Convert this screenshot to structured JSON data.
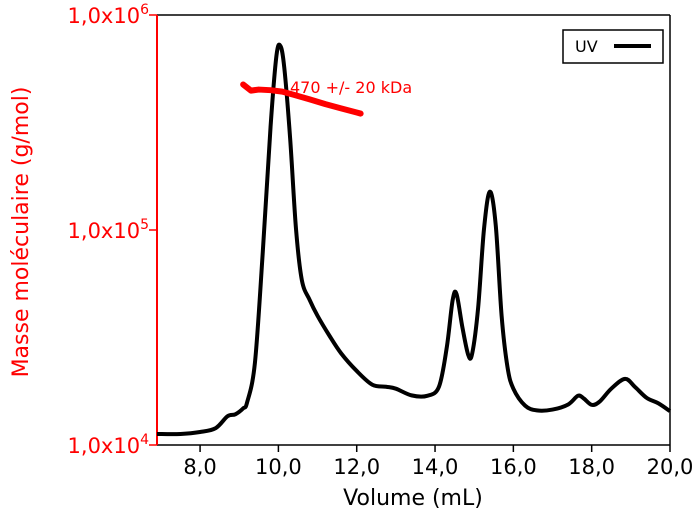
{
  "chart_data": {
    "type": "line",
    "xlabel": "Volume (mL)",
    "ylabel": "Masse moléculaire (g/mol)",
    "xlim": [
      6.9,
      20.0
    ],
    "x_ticks": [
      8,
      10,
      12,
      14,
      16,
      18,
      20
    ],
    "x_tick_labels": [
      "8,0",
      "10,0",
      "12,0",
      "14,0",
      "16,0",
      "18,0",
      "20,0"
    ],
    "y_scale": "log",
    "ylim": [
      10000,
      1000000
    ],
    "y_ticks": [
      {
        "value": 10000,
        "mantissa": "1,0x10",
        "exp": "4"
      },
      {
        "value": 100000,
        "mantissa": "1,0x10",
        "exp": "5"
      },
      {
        "value": 1000000,
        "mantissa": "1,0x10",
        "exp": "6"
      }
    ],
    "annotation": "470 +/- 20 kDa",
    "legend": {
      "position": "top-right",
      "entries": [
        {
          "label": "UV",
          "color": "#000000"
        }
      ]
    },
    "series": [
      {
        "name": "UV",
        "axis": "UV absorbance (unlabeled, arbitrary)",
        "color": "#000000",
        "points": [
          [
            6.9,
            0.0
          ],
          [
            7.5,
            0.0
          ],
          [
            8.0,
            0.005
          ],
          [
            8.4,
            0.015
          ],
          [
            8.7,
            0.045
          ],
          [
            8.9,
            0.05
          ],
          [
            9.1,
            0.065
          ],
          [
            9.2,
            0.08
          ],
          [
            9.4,
            0.18
          ],
          [
            9.6,
            0.46
          ],
          [
            9.8,
            0.78
          ],
          [
            9.95,
            0.96
          ],
          [
            10.05,
            0.985
          ],
          [
            10.15,
            0.93
          ],
          [
            10.3,
            0.75
          ],
          [
            10.45,
            0.52
          ],
          [
            10.6,
            0.39
          ],
          [
            10.8,
            0.34
          ],
          [
            11.0,
            0.3
          ],
          [
            11.3,
            0.25
          ],
          [
            11.6,
            0.205
          ],
          [
            12.0,
            0.16
          ],
          [
            12.4,
            0.125
          ],
          [
            12.75,
            0.12
          ],
          [
            13.0,
            0.115
          ],
          [
            13.4,
            0.098
          ],
          [
            13.8,
            0.097
          ],
          [
            14.1,
            0.12
          ],
          [
            14.3,
            0.22
          ],
          [
            14.45,
            0.34
          ],
          [
            14.55,
            0.355
          ],
          [
            14.7,
            0.27
          ],
          [
            14.85,
            0.2
          ],
          [
            14.95,
            0.205
          ],
          [
            15.1,
            0.32
          ],
          [
            15.25,
            0.52
          ],
          [
            15.4,
            0.615
          ],
          [
            15.55,
            0.53
          ],
          [
            15.7,
            0.3
          ],
          [
            15.85,
            0.17
          ],
          [
            16.0,
            0.115
          ],
          [
            16.3,
            0.072
          ],
          [
            16.6,
            0.06
          ],
          [
            17.0,
            0.062
          ],
          [
            17.4,
            0.075
          ],
          [
            17.65,
            0.097
          ],
          [
            17.8,
            0.09
          ],
          [
            18.0,
            0.074
          ],
          [
            18.2,
            0.082
          ],
          [
            18.5,
            0.115
          ],
          [
            18.85,
            0.14
          ],
          [
            19.1,
            0.12
          ],
          [
            19.4,
            0.092
          ],
          [
            19.7,
            0.078
          ],
          [
            20.0,
            0.058
          ]
        ]
      },
      {
        "name": "",
        "axis": "Masse moléculaire (g/mol)",
        "color": "#ff0000",
        "points": [
          [
            9.1,
            475000
          ],
          [
            9.3,
            445000
          ],
          [
            9.5,
            450000
          ],
          [
            9.8,
            447000
          ],
          [
            10.1,
            440000
          ],
          [
            10.4,
            425000
          ],
          [
            10.8,
            405000
          ],
          [
            11.2,
            385000
          ],
          [
            11.6,
            368000
          ],
          [
            12.0,
            352000
          ],
          [
            12.1,
            348000
          ]
        ]
      }
    ]
  }
}
